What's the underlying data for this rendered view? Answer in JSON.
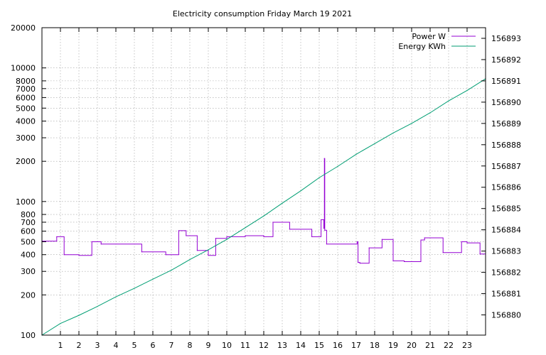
{
  "chart_data": {
    "type": "line",
    "title": "Electricity consumption Friday March 19 2021",
    "xlabel": "",
    "ylabel": "",
    "y2label": "",
    "xlim": [
      0,
      24
    ],
    "ylim": [
      100,
      20000
    ],
    "yscale": "log",
    "y2lim": [
      156879.05,
      156893.5
    ],
    "grid": true,
    "legend_position": "top-right",
    "x_ticks": [
      "1",
      "2",
      "3",
      "4",
      "5",
      "6",
      "7",
      "8",
      "9",
      "10",
      "11",
      "12",
      "13",
      "14",
      "15",
      "16",
      "17",
      "18",
      "19",
      "20",
      "21",
      "22",
      "23"
    ],
    "y_ticks": [
      "100",
      "200",
      "300",
      "400",
      "500",
      "600",
      "700",
      "800",
      "1000",
      "2000",
      "3000",
      "4000",
      "5000",
      "6000",
      "7000",
      "8000",
      "10000",
      "20000"
    ],
    "y2_ticks": [
      "156880",
      "156881",
      "156882",
      "156883",
      "156884",
      "156885",
      "156886",
      "156887",
      "156888",
      "156889",
      "156890",
      "156891",
      "156892",
      "156893"
    ],
    "series": [
      {
        "name": "Power W",
        "axis": "y",
        "color": "#9400d3",
        "step": true,
        "x": [
          0.0,
          0.8,
          1.2,
          2.0,
          2.7,
          3.2,
          5.4,
          6.7,
          7.4,
          7.8,
          8.4,
          9.0,
          9.4,
          10.0,
          11.0,
          12.0,
          12.5,
          13.4,
          14.6,
          15.1,
          15.25,
          15.28,
          15.3,
          15.4,
          17.05,
          17.1,
          17.2,
          17.7,
          18.4,
          19.0,
          19.6,
          20.5,
          20.7,
          21.7,
          22.7,
          23.0,
          23.7,
          24.0
        ],
        "y": [
          505,
          545,
          400,
          395,
          500,
          480,
          420,
          400,
          605,
          555,
          430,
          395,
          530,
          545,
          555,
          545,
          700,
          620,
          545,
          730,
          630,
          2100,
          610,
          480,
          500,
          350,
          345,
          450,
          520,
          360,
          355,
          515,
          535,
          415,
          500,
          490,
          405,
          515
        ]
      },
      {
        "name": "Energy KWh",
        "axis": "y2",
        "color": "#009e73",
        "step": false,
        "x": [
          0.0,
          1.0,
          2.0,
          3.0,
          4.0,
          5.0,
          6.0,
          7.0,
          8.0,
          9.0,
          10.0,
          11.0,
          12.0,
          13.0,
          14.0,
          15.0,
          16.0,
          17.0,
          18.0,
          19.0,
          20.0,
          21.0,
          22.0,
          23.0,
          24.0
        ],
        "y": [
          156879.05,
          156879.6,
          156879.98,
          156880.4,
          156880.85,
          156881.25,
          156881.68,
          156882.1,
          156882.6,
          156883.06,
          156883.55,
          156884.1,
          156884.65,
          156885.25,
          156885.83,
          156886.45,
          156886.98,
          156887.55,
          156888.05,
          156888.55,
          156889.0,
          156889.5,
          156890.06,
          156890.55,
          156891.1
        ]
      }
    ]
  }
}
